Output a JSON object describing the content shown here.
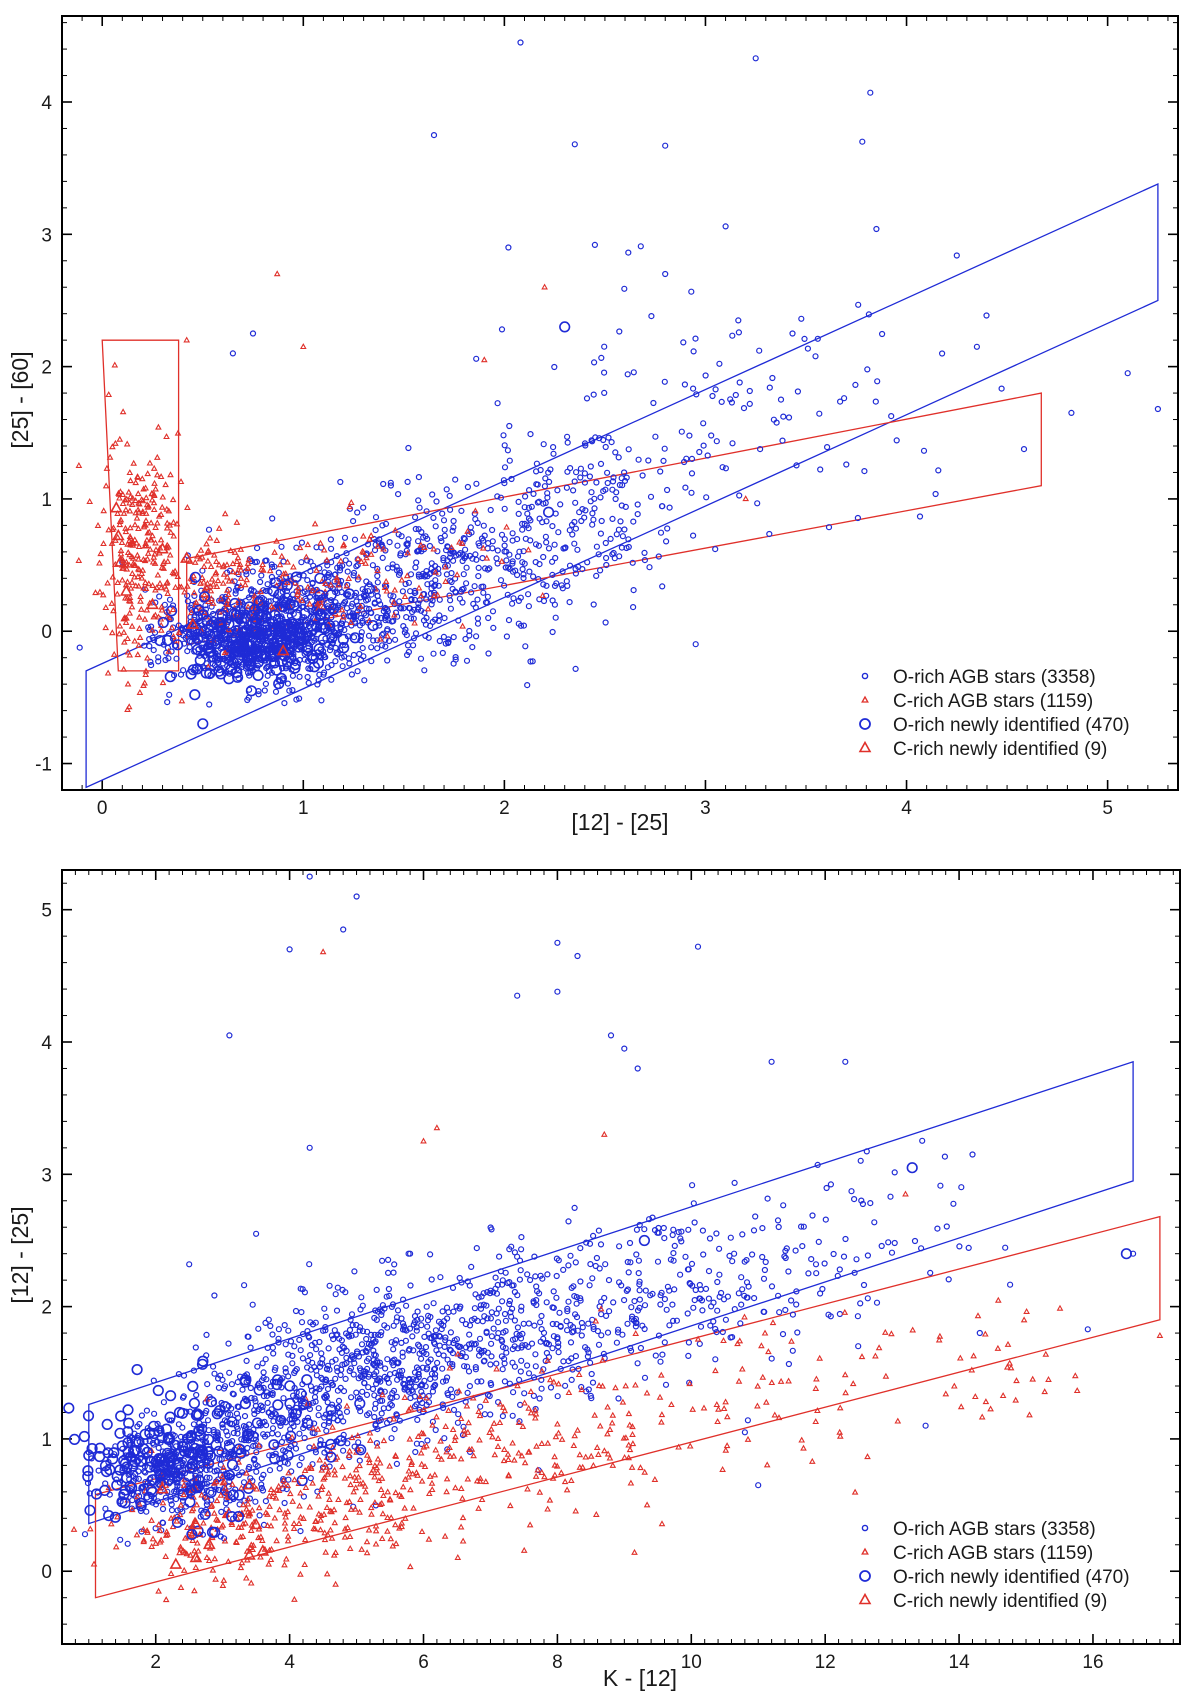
{
  "figure": {
    "background": "#ffffff"
  },
  "colors": {
    "o_rich": "#1f2bd6",
    "c_rich": "#e0302a",
    "frame": "#000000"
  },
  "chart_data": [
    {
      "type": "scatter",
      "xlabel": "[12] - [25]",
      "ylabel": "[25] - [60]",
      "xlim": [
        -0.2,
        5.35
      ],
      "ylim": [
        -1.2,
        4.65
      ],
      "x_ticks": [
        0,
        1,
        2,
        3,
        4,
        5
      ],
      "x_tick_labels": [
        "0",
        "1",
        "2",
        "3",
        "4",
        "5"
      ],
      "y_ticks": [
        -1,
        0,
        1,
        2,
        3,
        4
      ],
      "y_tick_labels": [
        "-1",
        "0",
        "1",
        "2",
        "3",
        "4"
      ],
      "grid": false,
      "legend_position": "bottom-right",
      "legend": [
        {
          "label": "O-rich AGB stars (3358)",
          "marker": "small-circle",
          "color": "#1f2bd6"
        },
        {
          "label": "C-rich AGB stars (1159)",
          "marker": "small-triangle",
          "color": "#e0302a"
        },
        {
          "label": "O-rich newly identified (470)",
          "marker": "large-circle",
          "color": "#1f2bd6"
        },
        {
          "label": "C-rich newly identified (9)",
          "marker": "large-triangle",
          "color": "#e0302a"
        }
      ],
      "regions": [
        {
          "color": "#1f2bd6",
          "points": [
            [
              -0.08,
              -0.3
            ],
            [
              5.25,
              3.38
            ],
            [
              5.25,
              2.5
            ],
            [
              -0.08,
              -1.18
            ]
          ]
        },
        {
          "color": "#e0302a",
          "points": [
            [
              0.0,
              2.2
            ],
            [
              0.38,
              2.2
            ],
            [
              0.38,
              -0.3
            ],
            [
              0.08,
              -0.3
            ]
          ]
        },
        {
          "color": "#e0302a",
          "points": [
            [
              0.42,
              0.55
            ],
            [
              4.67,
              1.8
            ],
            [
              4.67,
              1.1
            ],
            [
              0.42,
              -0.1
            ]
          ]
        }
      ],
      "series": [
        {
          "name": "O-rich AGB stars (3358)",
          "marker": "small-circle",
          "color": "#1f2bd6",
          "clusters": [
            {
              "cx": 0.75,
              "cy": -0.05,
              "sx": 0.22,
              "sy": 0.18,
              "n": 650
            },
            {
              "cx": 1.2,
              "cy": 0.2,
              "sx": 0.3,
              "sy": 0.25,
              "n": 450
            },
            {
              "cx": 1.8,
              "cy": 0.5,
              "sx": 0.35,
              "sy": 0.3,
              "n": 300
            },
            {
              "cx": 2.4,
              "cy": 1.0,
              "sx": 0.3,
              "sy": 0.3,
              "n": 180
            },
            {
              "cx": 3.1,
              "cy": 1.7,
              "sx": 0.55,
              "sy": 0.5,
              "n": 110
            }
          ],
          "points": [
            [
              2.08,
              4.45
            ],
            [
              3.25,
              4.33
            ],
            [
              3.82,
              4.07
            ],
            [
              1.65,
              3.75
            ],
            [
              3.78,
              3.7
            ],
            [
              2.35,
              3.68
            ],
            [
              2.8,
              3.67
            ],
            [
              3.1,
              3.06
            ],
            [
              3.85,
              3.04
            ],
            [
              2.45,
              2.92
            ],
            [
              2.02,
              2.9
            ],
            [
              2.8,
              2.7
            ],
            [
              4.25,
              2.84
            ],
            [
              5.1,
              1.95
            ],
            [
              5.25,
              1.68
            ],
            [
              0.75,
              2.25
            ],
            [
              0.65,
              2.1
            ],
            [
              4.35,
              2.15
            ],
            [
              4.82,
              1.65
            ]
          ]
        },
        {
          "name": "C-rich AGB stars (1159)",
          "marker": "small-triangle",
          "color": "#e0302a",
          "clusters": [
            {
              "cx": 0.18,
              "cy": 0.6,
              "sx": 0.1,
              "sy": 0.45,
              "n": 280
            },
            {
              "cx": 0.55,
              "cy": 0.3,
              "sx": 0.15,
              "sy": 0.2,
              "n": 120
            },
            {
              "cx": 1.0,
              "cy": 0.35,
              "sx": 0.3,
              "sy": 0.2,
              "n": 100
            },
            {
              "cx": 1.6,
              "cy": 0.5,
              "sx": 0.35,
              "sy": 0.25,
              "n": 45
            }
          ],
          "points": [
            [
              0.87,
              2.7
            ],
            [
              1.0,
              2.15
            ],
            [
              0.42,
              2.2
            ],
            [
              2.2,
              2.6
            ],
            [
              1.9,
              2.05
            ],
            [
              3.2,
              1.0
            ]
          ]
        },
        {
          "name": "O-rich newly identified (470)",
          "marker": "large-circle",
          "color": "#1f2bd6",
          "clusters": [
            {
              "cx": 0.75,
              "cy": -0.1,
              "sx": 0.18,
              "sy": 0.15,
              "n": 160
            },
            {
              "cx": 1.0,
              "cy": 0.1,
              "sx": 0.2,
              "sy": 0.15,
              "n": 50
            }
          ],
          "points": [
            [
              0.5,
              -0.7
            ],
            [
              2.3,
              2.3
            ],
            [
              2.22,
              0.9
            ]
          ]
        },
        {
          "name": "C-rich newly identified (9)",
          "marker": "large-triangle",
          "color": "#e0302a",
          "points": [
            [
              0.07,
              0.93
            ],
            [
              0.08,
              0.72
            ],
            [
              0.09,
              0.52
            ],
            [
              0.25,
              0.2
            ],
            [
              0.42,
              0.55
            ],
            [
              0.9,
              -0.15
            ],
            [
              0.45,
              0.05
            ],
            [
              0.12,
              0.3
            ],
            [
              0.3,
              0.62
            ]
          ]
        }
      ]
    },
    {
      "type": "scatter",
      "xlabel": "K - [12]",
      "ylabel": "[12] - [25]",
      "xlim": [
        0.6,
        17.3
      ],
      "ylim": [
        -0.55,
        5.3
      ],
      "x_ticks": [
        2,
        4,
        6,
        8,
        10,
        12,
        14,
        16
      ],
      "x_tick_labels": [
        "2",
        "4",
        "6",
        "8",
        "10",
        "12",
        "14",
        "16"
      ],
      "y_ticks": [
        0,
        1,
        2,
        3,
        4,
        5
      ],
      "y_tick_labels": [
        "0",
        "1",
        "2",
        "3",
        "4",
        "5"
      ],
      "grid": false,
      "legend_position": "bottom-right",
      "legend": [
        {
          "label": "O-rich AGB stars (3358)",
          "marker": "small-circle",
          "color": "#1f2bd6"
        },
        {
          "label": "C-rich AGB stars (1159)",
          "marker": "small-triangle",
          "color": "#e0302a"
        },
        {
          "label": "O-rich newly identified (470)",
          "marker": "large-circle",
          "color": "#1f2bd6"
        },
        {
          "label": "C-rich newly identified (9)",
          "marker": "large-triangle",
          "color": "#e0302a"
        }
      ],
      "regions": [
        {
          "color": "#1f2bd6",
          "points": [
            [
              1.0,
              1.26
            ],
            [
              16.6,
              3.85
            ],
            [
              16.6,
              2.95
            ],
            [
              1.0,
              0.36
            ]
          ]
        },
        {
          "color": "#e0302a",
          "points": [
            [
              1.1,
              0.58
            ],
            [
              17.0,
              2.68
            ],
            [
              17.0,
              1.9
            ],
            [
              1.1,
              -0.2
            ]
          ]
        }
      ],
      "series": [
        {
          "name": "O-rich AGB stars (3358)",
          "marker": "small-circle",
          "color": "#1f2bd6",
          "clusters": [
            {
              "cx": 2.3,
              "cy": 0.75,
              "sx": 0.55,
              "sy": 0.2,
              "n": 380
            },
            {
              "cx": 3.6,
              "cy": 1.15,
              "sx": 0.7,
              "sy": 0.28,
              "n": 300
            },
            {
              "cx": 5.3,
              "cy": 1.55,
              "sx": 0.9,
              "sy": 0.28,
              "n": 480
            },
            {
              "cx": 7.5,
              "cy": 1.85,
              "sx": 1.1,
              "sy": 0.3,
              "n": 350
            },
            {
              "cx": 10.0,
              "cy": 2.25,
              "sx": 1.3,
              "sy": 0.3,
              "n": 180
            },
            {
              "cx": 12.5,
              "cy": 2.4,
              "sx": 1.4,
              "sy": 0.35,
              "n": 60
            }
          ],
          "points": [
            [
              4.3,
              5.25
            ],
            [
              5.0,
              5.1
            ],
            [
              4.8,
              4.85
            ],
            [
              4.0,
              4.7
            ],
            [
              8.0,
              4.75
            ],
            [
              8.3,
              4.65
            ],
            [
              10.1,
              4.72
            ],
            [
              3.1,
              4.05
            ],
            [
              8.0,
              4.38
            ],
            [
              8.8,
              4.05
            ],
            [
              9.0,
              3.95
            ],
            [
              7.4,
              4.35
            ],
            [
              9.2,
              3.8
            ],
            [
              11.2,
              3.85
            ],
            [
              12.3,
              3.85
            ],
            [
              4.3,
              3.2
            ],
            [
              2.5,
              2.32
            ],
            [
              3.5,
              2.55
            ],
            [
              14.2,
              3.15
            ],
            [
              16.6,
              2.4
            ],
            [
              11.0,
              0.65
            ],
            [
              10.8,
              1.05
            ],
            [
              13.5,
              1.1
            ],
            [
              1.0,
              0.9
            ]
          ]
        },
        {
          "name": "C-rich AGB stars (1159)",
          "marker": "small-triangle",
          "color": "#e0302a",
          "clusters": [
            {
              "cx": 2.8,
              "cy": 0.35,
              "sx": 0.7,
              "sy": 0.22,
              "n": 180
            },
            {
              "cx": 4.8,
              "cy": 0.55,
              "sx": 0.9,
              "sy": 0.25,
              "n": 220
            },
            {
              "cx": 7.3,
              "cy": 0.95,
              "sx": 1.2,
              "sy": 0.3,
              "n": 170
            },
            {
              "cx": 10.5,
              "cy": 1.3,
              "sx": 1.5,
              "sy": 0.3,
              "n": 80
            },
            {
              "cx": 14.2,
              "cy": 1.65,
              "sx": 1.3,
              "sy": 0.3,
              "n": 40
            }
          ],
          "points": [
            [
              4.5,
              4.68
            ],
            [
              6.0,
              3.25
            ],
            [
              8.7,
              3.3
            ],
            [
              6.2,
              3.35
            ],
            [
              13.2,
              2.85
            ],
            [
              17.0,
              1.78
            ],
            [
              15.1,
              1.45
            ],
            [
              14.4,
              1.28
            ]
          ]
        },
        {
          "name": "O-rich newly identified (470)",
          "marker": "large-circle",
          "color": "#1f2bd6",
          "clusters": [
            {
              "cx": 2.2,
              "cy": 0.85,
              "sx": 0.6,
              "sy": 0.25,
              "n": 150
            },
            {
              "cx": 3.6,
              "cy": 1.05,
              "sx": 0.6,
              "sy": 0.25,
              "n": 40
            }
          ],
          "points": [
            [
              9.3,
              2.5
            ],
            [
              13.3,
              3.05
            ],
            [
              16.5,
              2.4
            ]
          ]
        },
        {
          "name": "C-rich newly identified (9)",
          "marker": "large-triangle",
          "color": "#e0302a",
          "points": [
            [
              2.1,
              0.62
            ],
            [
              2.3,
              0.05
            ],
            [
              2.6,
              0.1
            ],
            [
              2.8,
              0.2
            ],
            [
              3.4,
              0.65
            ],
            [
              3.5,
              0.35
            ],
            [
              3.6,
              0.15
            ],
            [
              3.4,
              0.12
            ],
            [
              2.6,
              0.35
            ]
          ]
        }
      ]
    }
  ]
}
